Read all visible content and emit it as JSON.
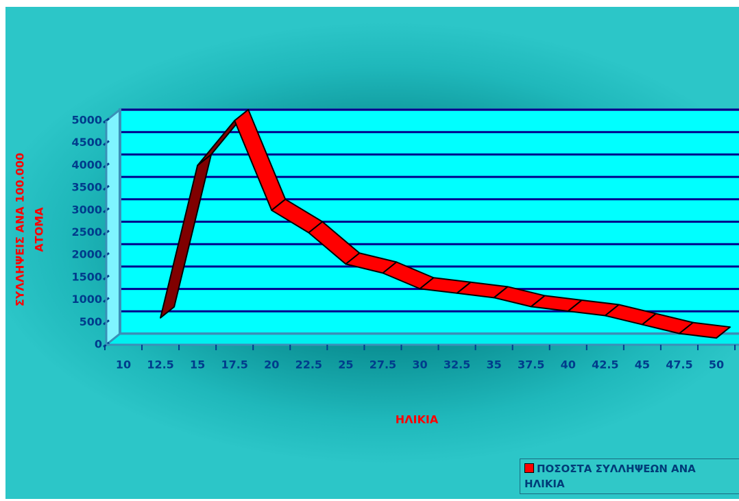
{
  "chart_data": {
    "type": "line3d",
    "ylabel": [
      "ΣΥΛΛΗΨΕΙΣ ΑΝΑ 100.000",
      "ΑΤΟΜΑ"
    ],
    "xlabel": "ΗΛΙΚΙΑ",
    "categories": [
      "10",
      "12.5",
      "15",
      "17.5",
      "20",
      "22.5",
      "25",
      "27.5",
      "30",
      "32.5",
      "35",
      "37.5",
      "40",
      "42.5",
      "45",
      "47.5",
      "50"
    ],
    "series": [
      {
        "name": "ΠΟΣΟΣΤΑ ΣΥΛΛΗΨΕΩΝ ΑΝΑ ΗΛΙΚΙΑ",
        "color": "#ff0000",
        "values": [
          null,
          600,
          4000,
          5000,
          3000,
          2500,
          1800,
          1600,
          1250,
          1150,
          1050,
          850,
          750,
          650,
          450,
          250,
          150
        ]
      }
    ],
    "ylim": [
      0,
      5000
    ],
    "yticks": [
      0,
      500,
      1000,
      1500,
      2000,
      2500,
      3000,
      3500,
      4000,
      4500,
      5000
    ],
    "grid": true
  }
}
